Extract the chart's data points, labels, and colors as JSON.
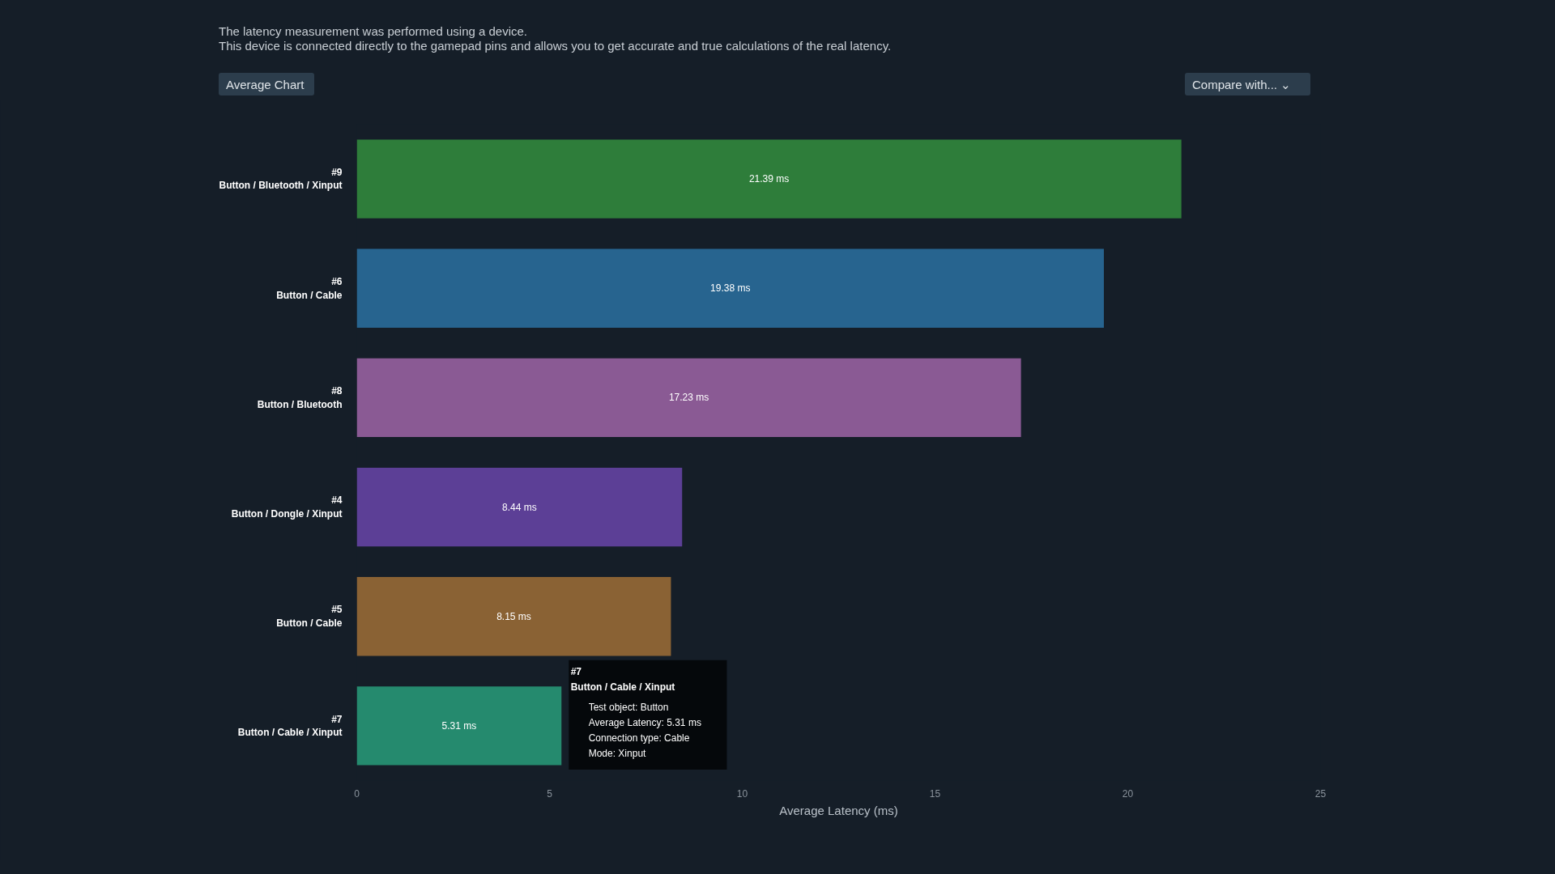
{
  "chart_data": {
    "type": "bar",
    "orientation": "horizontal",
    "xlabel": "Average Latency (ms)",
    "categories": [
      "#9\nButton / Bluetooth / Xinput",
      "#6\nButton / Cable",
      "#8\nButton / Bluetooth",
      "#4\nButton / Dongle / Xinput",
      "#5\nButton / Cable",
      "#7\nButton / Cable / Xinput"
    ],
    "values": [
      21.39,
      19.38,
      17.23,
      8.44,
      8.15,
      5.31
    ],
    "colors": [
      "#2e7d3a",
      "#27648f",
      "#8a5a94",
      "#5c3f96",
      "#8a6234",
      "#258a6e"
    ],
    "value_labels": [
      "21.39 ms",
      "19.38 ms",
      "17.23 ms",
      "8.44 ms",
      "8.15 ms",
      "5.31 ms"
    ],
    "xlim": [
      0,
      25
    ],
    "xticks": [
      0,
      5,
      10,
      15,
      20,
      25
    ],
    "grid": false,
    "annotations": [
      "The latency measurement was performed using a device.",
      "This device is connected directly to the gamepad pins and allows you to get accurate and true calculations of the real latency.",
      "Average Chart ⌄",
      "Compare with... ⌄",
      "#7",
      "Button / Cable / Xinput",
      "Test object: Button",
      "Average Latency: 5.31 ms",
      "Connection type: Cable",
      "Mode: Xinput"
    ]
  }
}
